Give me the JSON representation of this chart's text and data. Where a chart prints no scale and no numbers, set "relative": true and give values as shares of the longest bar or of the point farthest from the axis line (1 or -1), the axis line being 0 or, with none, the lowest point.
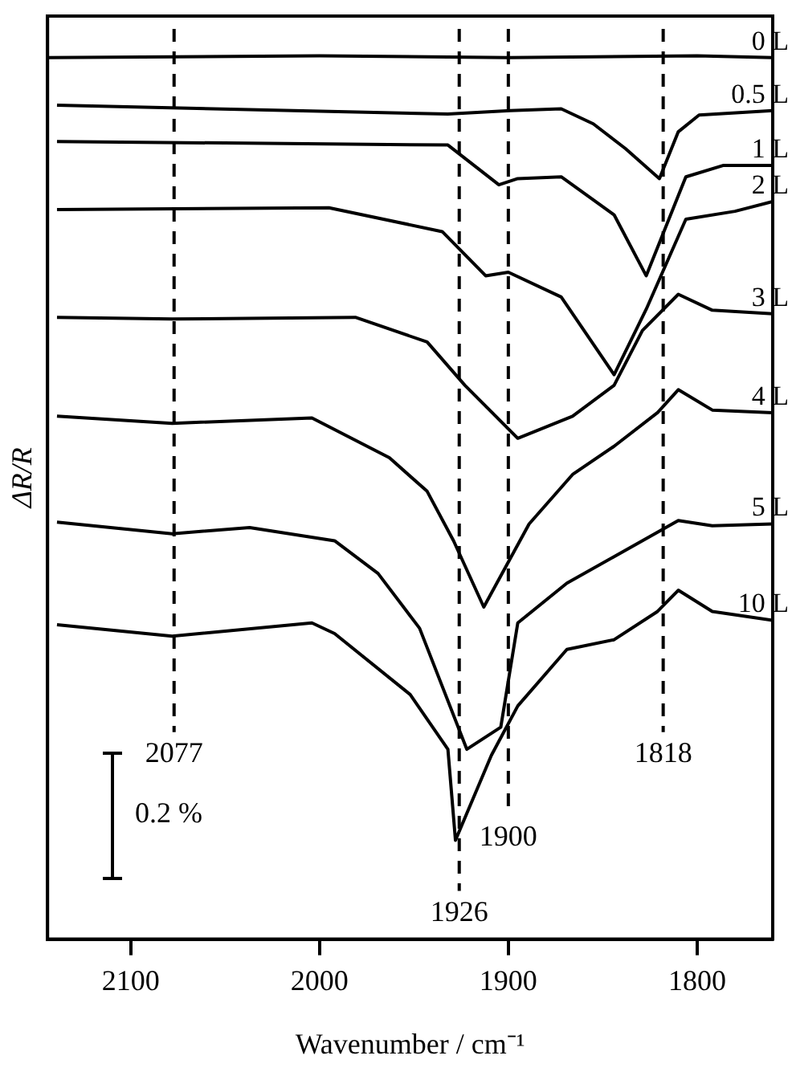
{
  "chart_data": {
    "type": "line",
    "relative": true,
    "xlabel": "Wavenumber / cm⁻¹",
    "ylabel": "ΔR/R",
    "xlim": [
      2144,
      1760
    ],
    "xticks": [
      2100,
      2000,
      1900,
      1800
    ],
    "tick_labels": "x",
    "legend": false,
    "marker": "none",
    "line_style": "solid",
    "series": [
      {
        "name": "0 L",
        "color": "#000000",
        "x": [
          2144,
          2000,
          1900,
          1800,
          1760
        ],
        "values": [
          0.998,
          1,
          0.998,
          1,
          0.998
        ]
      },
      {
        "name": "0.5 L",
        "color": "#000000",
        "x": [
          2139,
          1932,
          1899,
          1872,
          1855,
          1838,
          1820,
          1810,
          1799,
          1760
        ],
        "values": [
          0.944,
          0.934,
          0.938,
          0.94,
          0.923,
          0.895,
          0.861,
          0.914,
          0.933,
          0.938
        ]
      },
      {
        "name": "1 L",
        "color": "#000000",
        "x": [
          2139,
          1932,
          1905,
          1895,
          1872,
          1844,
          1827,
          1806,
          1786,
          1760
        ],
        "values": [
          0.903,
          0.899,
          0.854,
          0.861,
          0.863,
          0.82,
          0.751,
          0.863,
          0.876,
          0.876
        ]
      },
      {
        "name": "2 L",
        "color": "#000000",
        "x": [
          2139,
          1995,
          1935,
          1912,
          1900,
          1872,
          1844,
          1827,
          1806,
          1780,
          1760
        ],
        "values": [
          0.826,
          0.828,
          0.801,
          0.751,
          0.755,
          0.727,
          0.639,
          0.713,
          0.815,
          0.824,
          0.835
        ]
      },
      {
        "name": "3 L",
        "color": "#000000",
        "x": [
          2139,
          2078,
          1981,
          1943,
          1923,
          1895,
          1866,
          1844,
          1829,
          1810,
          1792,
          1760
        ],
        "values": [
          0.704,
          0.702,
          0.704,
          0.676,
          0.627,
          0.567,
          0.592,
          0.627,
          0.689,
          0.73,
          0.712,
          0.708
        ]
      },
      {
        "name": "4 L",
        "color": "#000000",
        "x": [
          2139,
          2078,
          2004,
          1963,
          1943,
          1929,
          1913,
          1889,
          1866,
          1844,
          1821,
          1810,
          1792,
          1760
        ],
        "values": [
          0.592,
          0.584,
          0.59,
          0.545,
          0.507,
          0.451,
          0.376,
          0.47,
          0.526,
          0.558,
          0.596,
          0.622,
          0.599,
          0.596
        ]
      },
      {
        "name": "5 L",
        "color": "#000000",
        "x": [
          2139,
          2078,
          2037,
          1992,
          1969,
          1947,
          1922,
          1904,
          1895,
          1869,
          1844,
          1810,
          1792,
          1760
        ],
        "values": [
          0.472,
          0.459,
          0.466,
          0.451,
          0.414,
          0.352,
          0.215,
          0.24,
          0.358,
          0.403,
          0.433,
          0.474,
          0.468,
          0.47
        ]
      },
      {
        "name": "10 L",
        "color": "#000000",
        "x": [
          2139,
          2078,
          2004,
          1992,
          1952,
          1932,
          1928,
          1909,
          1895,
          1869,
          1844,
          1821,
          1810,
          1792,
          1760
        ],
        "values": [
          0.356,
          0.343,
          0.358,
          0.346,
          0.277,
          0.215,
          0.112,
          0.208,
          0.264,
          0.328,
          0.339,
          0.371,
          0.395,
          0.371,
          0.361
        ]
      }
    ],
    "ref_lines": [
      {
        "axis": "x",
        "value": 2077,
        "label": "2077",
        "line_style": "dashed"
      },
      {
        "axis": "x",
        "value": 1926,
        "label": "1926",
        "line_style": "dashed"
      },
      {
        "axis": "x",
        "value": 1900,
        "label": "1900",
        "line_style": "dashed"
      },
      {
        "axis": "x",
        "value": 1818,
        "label": "1818",
        "line_style": "dashed"
      }
    ],
    "annotations": [
      "0.2 %"
    ]
  }
}
